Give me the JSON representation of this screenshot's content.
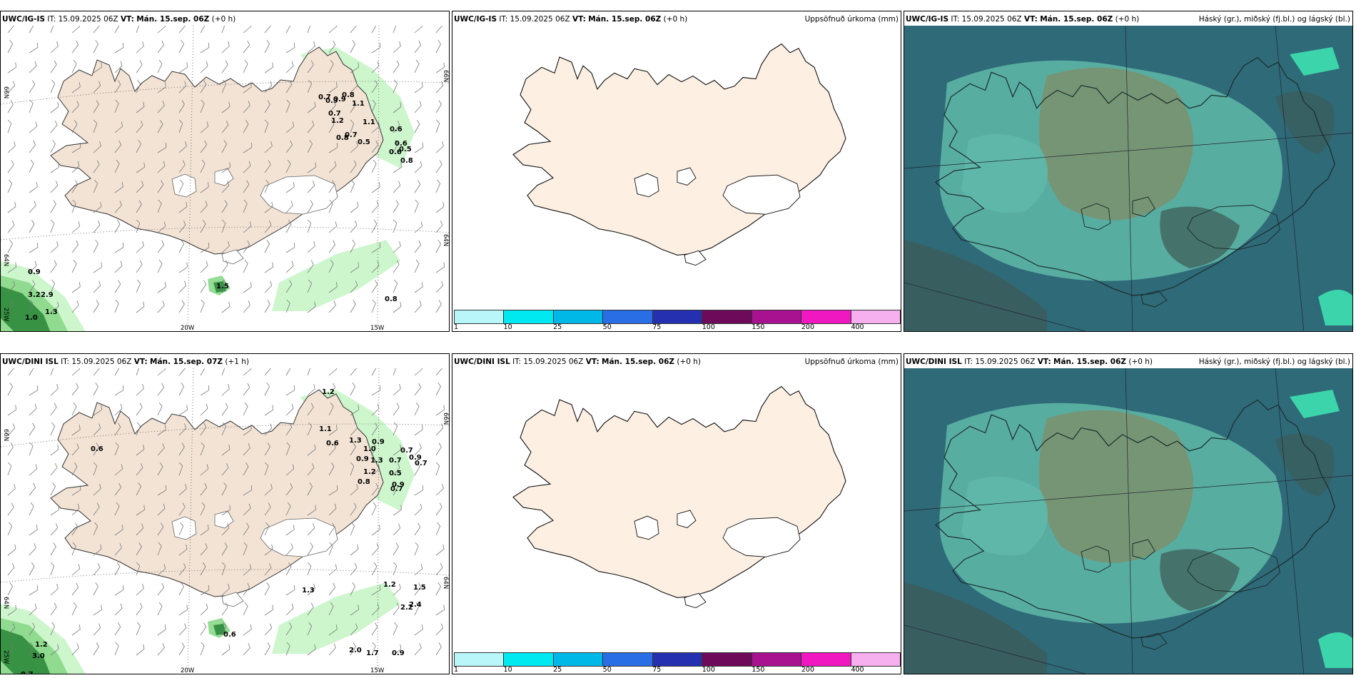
{
  "panels": [
    {
      "id": "p1",
      "type": "wind",
      "model": "UWC/IG-IS",
      "it_label": "IT:",
      "it": "15.09.2025 06Z",
      "vt_label": "VT:",
      "vt": "Mán. 15.sep. 06Z",
      "lead": "(+0 h)",
      "right_title": "",
      "axis": {
        "lat_left_top": "66N",
        "lat_right_top": "66N",
        "lat_left_mid": "64N",
        "lat_right_mid": "64N",
        "lon_bottom_1": "20W",
        "lon_bottom_2": "15W",
        "lon_left_bottom": "25W"
      },
      "labels": [
        "0.7",
        "0.9",
        "0.9",
        "0.8",
        "1.1",
        "0.7",
        "1.2",
        "1.1",
        "0.8",
        "0.7",
        "0.5",
        "0.6",
        "0.6",
        "0.5",
        "0.6",
        "0.8",
        "0.9",
        "3.2",
        "2.9",
        "1.3",
        "1.0",
        "1.5",
        "0.8"
      ]
    },
    {
      "id": "p2",
      "type": "precip",
      "model": "UWC/IG-IS",
      "it_label": "IT:",
      "it": "15.09.2025 06Z",
      "vt_label": "VT:",
      "vt": "Mán. 15.sep. 06Z",
      "lead": "(+0 h)",
      "right_title": "Uppsöfnuð úrkoma (mm)"
    },
    {
      "id": "p3",
      "type": "cloud",
      "model": "UWC/IG-IS",
      "it_label": "IT:",
      "it": "15.09.2025 06Z",
      "vt_label": "VT:",
      "vt": "Mán. 15.sep. 06Z",
      "lead": "(+0 h)",
      "right_title": "Háský (gr.), miðský (fj.bl.) og lágský (bl.)"
    },
    {
      "id": "p4",
      "type": "wind",
      "model": "UWC/DINI ISL",
      "it_label": "IT:",
      "it": "15.09.2025 06Z",
      "vt_label": "VT:",
      "vt": "Mán. 15.sep. 07Z",
      "lead": "(+1 h)",
      "right_title": "",
      "axis": {
        "lat_left_top": "66N",
        "lat_right_top": "66N",
        "lat_left_mid": "64N",
        "lat_right_mid": "64N",
        "lon_bottom_1": "20W",
        "lon_bottom_2": "15W",
        "lon_left_bottom": "25W"
      },
      "labels": [
        "1.2",
        "1.1",
        "0.6",
        "1.3",
        "0.9",
        "0.9",
        "0.6",
        "1.0",
        "1.3",
        "0.7",
        "0.9",
        "1.2",
        "0.8",
        "0.7",
        "0.5",
        "0.7",
        "0.7",
        "0.9",
        "1.3",
        "1.2",
        "1.5",
        "2.2",
        "2.4",
        "0.6",
        "2.0",
        "1.7",
        "0.9",
        "1.2",
        "3.0",
        "0.7"
      ]
    },
    {
      "id": "p5",
      "type": "precip",
      "model": "UWC/DINI ISL",
      "it_label": "IT:",
      "it": "15.09.2025 06Z",
      "vt_label": "VT:",
      "vt": "Mán. 15.sep. 06Z",
      "lead": "(+0 h)",
      "right_title": "Uppsöfnuð úrkoma (mm)"
    },
    {
      "id": "p6",
      "type": "cloud",
      "model": "UWC/DINI ISL",
      "it_label": "IT:",
      "it": "15.09.2025 06Z",
      "vt_label": "VT:",
      "vt": "Mán. 15.sep. 06Z",
      "lead": "(+0 h)",
      "right_title": "Háský (gr.), miðský (fj.bl.) og lágský (bl.)"
    }
  ],
  "legend": {
    "ticks": [
      "1",
      "10",
      "25",
      "50",
      "75",
      "100",
      "150",
      "200",
      "400"
    ],
    "colors": [
      "#b8f6fa",
      "#00e8f0",
      "#00b8e8",
      "#2a6ee6",
      "#2430b0",
      "#6e0a5a",
      "#a81290",
      "#f018c0",
      "#f6b0f0"
    ]
  },
  "colors": {
    "land": "#f2e3d5",
    "land_precip": "#fdf0e3",
    "green_light": "#c8f5c8",
    "green_mid": "#8ad88a",
    "green_dark": "#2d8a3c",
    "cloud_sea": "#2f6a78",
    "cloud_low": "#5fb8a8",
    "cloud_mid": "#7e8f6a",
    "cloud_dark": "#3d5a55",
    "cloud_bright": "#3ee0b0"
  }
}
